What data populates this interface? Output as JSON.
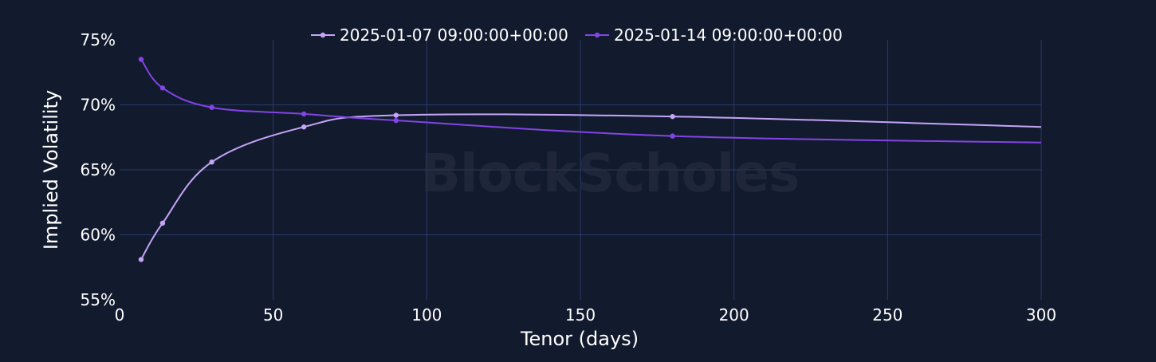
{
  "chart_data": {
    "type": "line",
    "xlabel": "Tenor (days)",
    "ylabel": "Implied Volatility",
    "xlim": [
      0,
      300
    ],
    "ylim": [
      55,
      75
    ],
    "x_ticks": [
      0,
      50,
      100,
      150,
      200,
      250,
      300
    ],
    "y_ticks": [
      55,
      60,
      65,
      70,
      75
    ],
    "y_tick_labels": [
      "55%",
      "60%",
      "65%",
      "70%",
      "75%"
    ],
    "grid": true,
    "legend_position": "top-center",
    "watermark": "BlockScholes",
    "series": [
      {
        "name": "2025-01-07 09:00:00+00:00",
        "color": "#c4a5f5",
        "x": [
          7,
          14,
          30,
          60,
          90,
          180,
          300
        ],
        "y": [
          58.1,
          60.9,
          65.6,
          68.3,
          69.2,
          69.1,
          68.3
        ]
      },
      {
        "name": "2025-01-14 09:00:00+00:00",
        "color": "#8344e6",
        "x": [
          7,
          14,
          30,
          60,
          90,
          180,
          300
        ],
        "y": [
          73.5,
          71.3,
          69.8,
          69.3,
          68.8,
          67.6,
          67.1
        ]
      }
    ],
    "markers_on_points": [
      7,
      14,
      30,
      60,
      90,
      180
    ]
  }
}
